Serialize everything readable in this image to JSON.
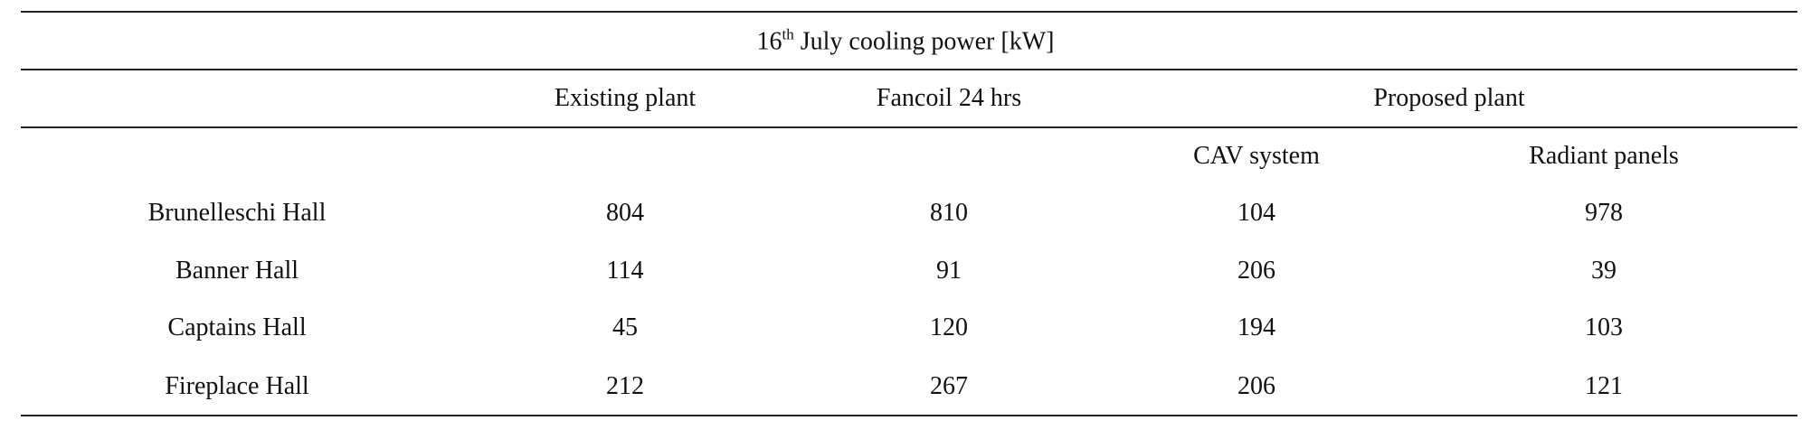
{
  "header": {
    "title": {
      "number": "16",
      "superscript": "th",
      "text": "July cooling power [kW]"
    }
  },
  "table": {
    "columns": [
      "Existing plant",
      "Fancoil 24 hrs",
      "Proposed plant"
    ],
    "subcolumns": [
      "CAV system",
      "Radiant panels"
    ],
    "rows": [
      [
        "Brunelleschi Hall",
        804,
        810,
        104,
        978
      ],
      [
        "Banner Hall",
        114,
        91,
        206,
        39
      ],
      [
        "Captains Hall",
        45,
        120,
        194,
        103
      ],
      [
        "Fireplace Hall",
        212,
        267,
        206,
        121
      ]
    ]
  }
}
